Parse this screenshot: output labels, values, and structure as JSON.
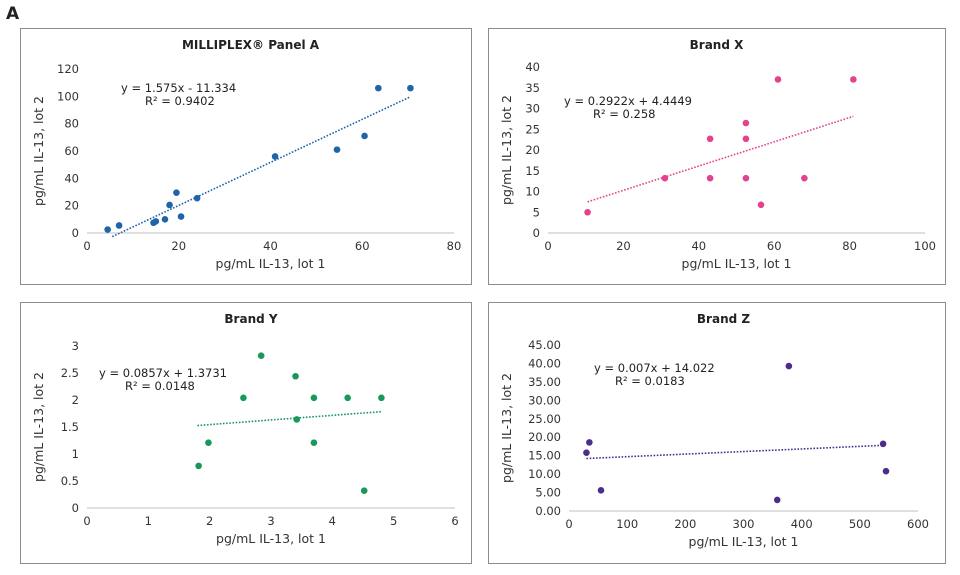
{
  "figure": {
    "label": "A"
  },
  "chart_data": [
    {
      "type": "scatter",
      "title": "MILLIPLEX® Panel A",
      "xlabel": "pg/mL IL-13, lot 1",
      "ylabel": "pg/mL IL-13, lot 2",
      "xlim": [
        0,
        80
      ],
      "ylim": [
        0,
        120
      ],
      "xticks": [
        "0",
        "20",
        "40",
        "60",
        "80"
      ],
      "yticks": [
        "0",
        "20",
        "40",
        "60",
        "80",
        "100",
        "120"
      ],
      "color": "#1f63a8",
      "series": [
        {
          "points": [
            [
              4.5,
              2.5
            ],
            [
              7,
              5.5
            ],
            [
              14.5,
              7.5
            ],
            [
              15,
              8.5
            ],
            [
              17,
              10
            ],
            [
              18,
              20.5
            ],
            [
              19.5,
              29.5
            ],
            [
              20.5,
              12
            ],
            [
              24,
              25.5
            ],
            [
              41,
              56
            ],
            [
              54.5,
              61
            ],
            [
              60.5,
              71
            ],
            [
              63.5,
              106
            ],
            [
              70.5,
              106
            ]
          ]
        }
      ],
      "trendline": {
        "slope": 1.575,
        "intercept": -11.334,
        "x_range": [
          5.5,
          70.5
        ]
      },
      "equation": "y = 1.575x - 11.334",
      "r2": "R² = 0.9402"
    },
    {
      "type": "scatter",
      "title": "Brand X",
      "xlabel": "pg/mL IL-13, lot 1",
      "ylabel": "pg/mL IL-13, lot 2",
      "xlim": [
        0,
        100
      ],
      "ylim": [
        0,
        40
      ],
      "xticks": [
        "0",
        "20",
        "40",
        "60",
        "80",
        "100"
      ],
      "yticks": [
        "0",
        "5",
        "10",
        "15",
        "20",
        "25",
        "30",
        "35",
        "40"
      ],
      "color": "#e6418f",
      "series": [
        {
          "points": [
            [
              10.5,
              5
            ],
            [
              31,
              13.2
            ],
            [
              43,
              22.7
            ],
            [
              43,
              13.2
            ],
            [
              52.5,
              26.5
            ],
            [
              52.5,
              22.7
            ],
            [
              52.5,
              13.2
            ],
            [
              56.5,
              6.8
            ],
            [
              61,
              37
            ],
            [
              68,
              13.2
            ],
            [
              81,
              37
            ]
          ]
        }
      ],
      "trendline": {
        "slope": 0.2922,
        "intercept": 4.4449,
        "x_range": [
          10.5,
          81
        ]
      },
      "equation": "y = 0.2922x + 4.4449",
      "r2": "R² = 0.258"
    },
    {
      "type": "scatter",
      "title": "Brand Y",
      "xlabel": "pg/mL IL-13, lot 1",
      "ylabel": "pg/mL IL-13, lot 2",
      "xlim": [
        0,
        6
      ],
      "ylim": [
        0,
        3
      ],
      "xticks": [
        "0",
        "1",
        "2",
        "3",
        "4",
        "5",
        "6"
      ],
      "yticks": [
        "0",
        "0.5",
        "1",
        "1.5",
        "2",
        "2.5",
        "3"
      ],
      "color": "#18985a",
      "series": [
        {
          "points": [
            [
              1.82,
              0.78
            ],
            [
              1.98,
              1.21
            ],
            [
              2.55,
              2.04
            ],
            [
              2.84,
              2.82
            ],
            [
              3.4,
              2.44
            ],
            [
              3.42,
              1.64
            ],
            [
              3.7,
              2.04
            ],
            [
              3.7,
              1.21
            ],
            [
              4.25,
              2.04
            ],
            [
              4.52,
              0.32
            ],
            [
              4.8,
              2.04
            ]
          ]
        }
      ],
      "trendline": {
        "slope": 0.0857,
        "intercept": 1.3731,
        "x_range": [
          1.8,
          4.8
        ]
      },
      "equation": "y = 0.0857x + 1.3731",
      "r2": "R² = 0.0148"
    },
    {
      "type": "scatter",
      "title": "Brand Z",
      "xlabel": "pg/mL IL-13, lot 1",
      "ylabel": "pg/mL IL-13, lot 2",
      "xlim": [
        0,
        600
      ],
      "ylim": [
        0,
        45
      ],
      "xticks": [
        "0",
        "100",
        "200",
        "300",
        "400",
        "500",
        "600"
      ],
      "yticks": [
        "0.00",
        "5.00",
        "10.00",
        "15.00",
        "20.00",
        "25.00",
        "30.00",
        "35.00",
        "40.00",
        "45.00"
      ],
      "color": "#4b2d8c",
      "series": [
        {
          "points": [
            [
              30,
              15.8
            ],
            [
              35,
              18.6
            ],
            [
              55,
              5.6
            ],
            [
              358,
              3
            ],
            [
              378,
              39.3
            ],
            [
              540,
              18.2
            ],
            [
              545,
              10.8
            ]
          ]
        }
      ],
      "trendline": {
        "slope": 0.007,
        "intercept": 14.022,
        "x_range": [
          30,
          545
        ]
      },
      "equation": "y = 0.007x + 14.022",
      "r2": "R² = 0.0183"
    }
  ]
}
